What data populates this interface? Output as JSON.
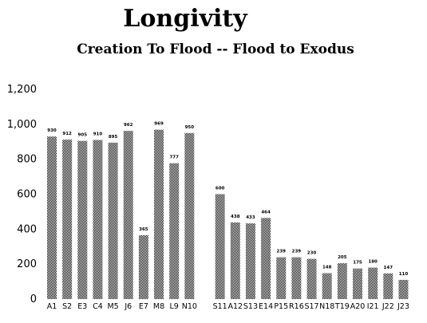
{
  "chart_data": {
    "type": "bar",
    "title": "Longivity",
    "subtitle": "Creation To Flood --  Flood  to  Exodus",
    "xlabel": "",
    "ylabel": "",
    "ylim": [
      0,
      1200
    ],
    "yticks": [
      "0",
      "200",
      "400",
      "600",
      "800",
      "1,000",
      "1,200"
    ],
    "grid": false,
    "legend": "none",
    "bar_color": "#7a7a7a",
    "categories": [
      "A1",
      "S2",
      "E3",
      "C4",
      "M5",
      "J6",
      "E7",
      "M8",
      "L9",
      "N10",
      "",
      "S11",
      "A12",
      "S13",
      "E14",
      "P15",
      "R16",
      "S17",
      "N18",
      "T19",
      "A20",
      "I21",
      "J22",
      "J23"
    ],
    "values": [
      930,
      912,
      905,
      910,
      895,
      962,
      365,
      969,
      777,
      950,
      null,
      600,
      438,
      433,
      464,
      239,
      239,
      230,
      148,
      205,
      175,
      180,
      147,
      110
    ],
    "data_labels": [
      "930",
      "912",
      "905",
      "910",
      "895",
      "962",
      "365",
      "969",
      "777",
      "950",
      "",
      "600",
      "438",
      "433",
      "464",
      "239",
      "239",
      "230",
      "148",
      "205",
      "175",
      "180",
      "147",
      "110"
    ]
  }
}
